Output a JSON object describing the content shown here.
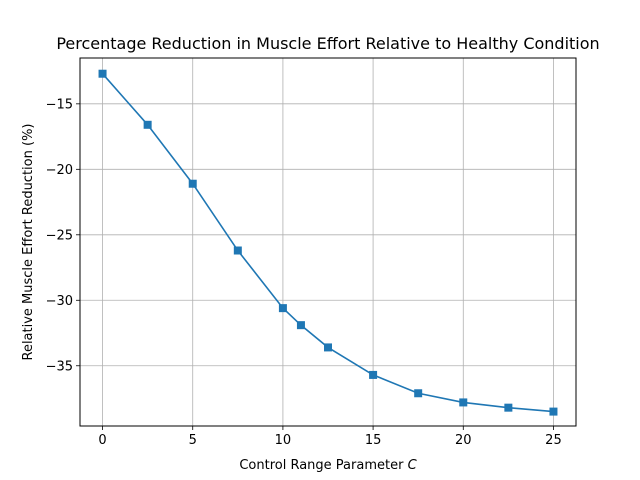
{
  "chart_data": {
    "type": "line",
    "title": "Percentage Reduction in Muscle Effort Relative to Healthy Condition",
    "xlabel": "Control Range Parameter",
    "xlabel_symbol": "C",
    "ylabel": "Relative Muscle Effort Reduction (%)",
    "xlim": [
      -1.25,
      26.25
    ],
    "ylim": [
      -39.6,
      -11.5
    ],
    "xticks": [
      0,
      5,
      10,
      15,
      20,
      25
    ],
    "yticks": [
      -35,
      -30,
      -25,
      -20,
      -15
    ],
    "grid": true,
    "series": [
      {
        "color": "#1f77b4",
        "marker": "square",
        "x": [
          0,
          2.5,
          5,
          7.5,
          10,
          11,
          12.5,
          15,
          17.5,
          20,
          22.5,
          25
        ],
        "y": [
          -12.7,
          -16.6,
          -21.1,
          -26.2,
          -30.6,
          -31.9,
          -33.6,
          -35.7,
          -37.1,
          -37.8,
          -38.2,
          -38.5
        ]
      }
    ]
  }
}
